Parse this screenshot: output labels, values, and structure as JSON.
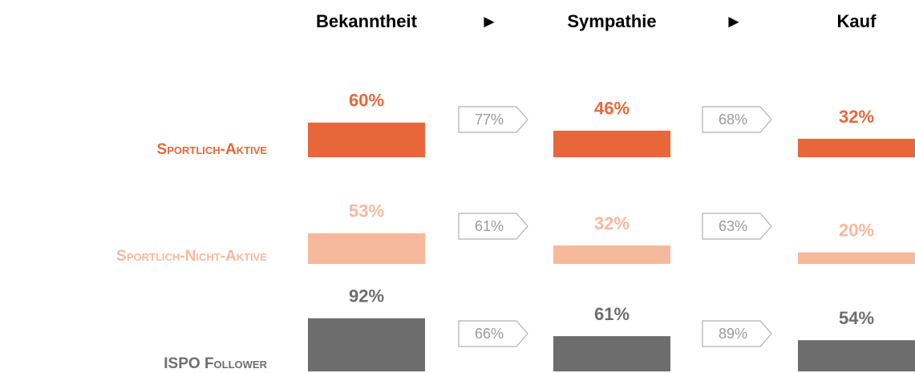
{
  "chart_data": {
    "type": "funnel",
    "categories": [
      "Bekanntheit",
      "Sympathie",
      "Kauf"
    ],
    "separators": [
      "►",
      "►"
    ],
    "series": [
      {
        "name": "Sportlich-Aktive",
        "color": "#e8673a",
        "values": [
          60,
          46,
          32
        ],
        "value_labels": [
          "60%",
          "46%",
          "32%"
        ],
        "conversions": [
          77,
          68
        ],
        "conversion_labels": [
          "77%",
          "68%"
        ]
      },
      {
        "name": "Sportlich-Nicht-Aktive",
        "color": "#f7b99b",
        "values": [
          53,
          32,
          20
        ],
        "value_labels": [
          "53%",
          "32%",
          "20%"
        ],
        "conversions": [
          61,
          63
        ],
        "conversion_labels": [
          "61%",
          "63%"
        ]
      },
      {
        "name": "ISPO Follower",
        "color": "#6d6d6d",
        "values": [
          92,
          61,
          54
        ],
        "value_labels": [
          "92%",
          "61%",
          "54%"
        ],
        "conversions": [
          66,
          89
        ],
        "conversion_labels": [
          "66%",
          "89%"
        ]
      }
    ]
  }
}
